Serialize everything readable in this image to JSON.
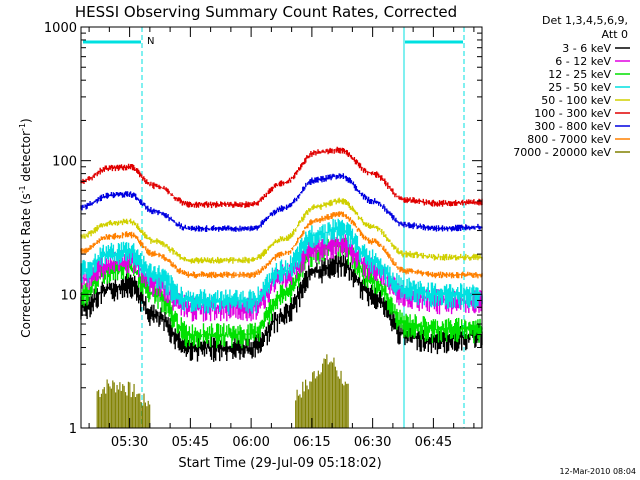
{
  "chart_data": {
    "type": "line",
    "title": "HESSI Observing Summary Count Rates, Corrected",
    "xlabel": "Start Time (29-Jul-09 05:18:02)",
    "ylabel_main": "Corrected Count Rate (s",
    "ylabel_sup1": "-1",
    "ylabel_mid": " detector",
    "ylabel_sup2": "-1",
    "ylabel_end": ")",
    "yscale": "log",
    "ylim": [
      1,
      1000
    ],
    "xlim_minutes": [
      18,
      117
    ],
    "x_ticks": [
      {
        "label": "05:30",
        "minute": 30
      },
      {
        "label": "05:45",
        "minute": 45
      },
      {
        "label": "06:00",
        "minute": 60
      },
      {
        "label": "06:15",
        "minute": 75
      },
      {
        "label": "06:30",
        "minute": 90
      },
      {
        "label": "06:45",
        "minute": 105
      }
    ],
    "y_ticks": [
      {
        "label": "1",
        "value": 1
      },
      {
        "label": "10",
        "value": 10
      },
      {
        "label": "100",
        "value": 100
      },
      {
        "label": "1000",
        "value": 1000
      }
    ],
    "legend_title_1": "Det 1,3,4,5,6,9,",
    "legend_title_2": "Att 0",
    "legend_position": "right, outside plot",
    "flag_label": "N",
    "footer_date": "12-Mar-2010 08:04",
    "series": [
      {
        "name": "3 - 6 keV",
        "color": "#000000",
        "x": [
          18,
          25,
          30,
          36,
          45,
          60,
          68,
          76,
          82,
          90,
          98,
          106,
          117
        ],
        "y": [
          8,
          11,
          12,
          7,
          4,
          4,
          7,
          15,
          17,
          10,
          5,
          4.5,
          5
        ]
      },
      {
        "name": "6 - 12 keV",
        "color": "#e000e0",
        "x": [
          18,
          25,
          30,
          36,
          45,
          60,
          68,
          76,
          82,
          90,
          98,
          106,
          117
        ],
        "y": [
          13,
          17,
          18,
          12,
          8,
          8,
          14,
          22,
          24,
          16,
          10,
          9,
          9
        ]
      },
      {
        "name": "12 - 25 keV",
        "color": "#00e000",
        "x": [
          18,
          25,
          30,
          36,
          45,
          60,
          68,
          76,
          82,
          90,
          98,
          106,
          117
        ],
        "y": [
          10,
          15,
          16,
          10,
          5,
          5,
          10,
          21,
          23,
          13,
          6,
          5.5,
          5.5
        ]
      },
      {
        "name": "25 - 50 keV",
        "color": "#00e0e0",
        "x": [
          18,
          25,
          30,
          36,
          45,
          60,
          68,
          76,
          82,
          90,
          98,
          106,
          117
        ],
        "y": [
          15,
          20,
          21,
          14,
          9,
          9,
          15,
          28,
          31,
          18,
          11,
          10,
          10
        ]
      },
      {
        "name": "50 - 100 keV",
        "color": "#d0d000",
        "x": [
          18,
          25,
          30,
          36,
          45,
          60,
          68,
          76,
          82,
          90,
          98,
          106,
          117
        ],
        "y": [
          27,
          34,
          35,
          25,
          18,
          18,
          26,
          45,
          50,
          32,
          20,
          19,
          19
        ]
      },
      {
        "name": "100 - 300 keV",
        "color": "#e00000",
        "x": [
          18,
          25,
          30,
          36,
          45,
          60,
          68,
          76,
          82,
          90,
          98,
          106,
          117
        ],
        "y": [
          70,
          88,
          90,
          65,
          47,
          47,
          68,
          115,
          120,
          80,
          51,
          48,
          49
        ]
      },
      {
        "name": "300 - 800 keV",
        "color": "#0000e0",
        "x": [
          18,
          25,
          30,
          36,
          45,
          60,
          68,
          76,
          82,
          90,
          98,
          106,
          117
        ],
        "y": [
          45,
          55,
          56,
          42,
          31,
          31,
          44,
          72,
          77,
          50,
          33,
          31,
          32
        ]
      },
      {
        "name": "800 - 7000 keV",
        "color": "#ff8000",
        "x": [
          18,
          25,
          30,
          36,
          45,
          60,
          68,
          76,
          82,
          90,
          98,
          106,
          117
        ],
        "y": [
          21,
          27,
          28,
          20,
          14,
          14,
          20,
          36,
          40,
          25,
          15,
          14,
          14
        ]
      },
      {
        "name": "7000 - 20000 keV",
        "color": "#808000",
        "x": [
          22,
          25,
          28,
          31,
          34,
          71,
          74,
          76,
          78,
          80,
          82,
          84
        ],
        "y": [
          1.8,
          2,
          2,
          1.8,
          1.5,
          1.7,
          2,
          2.5,
          3,
          3,
          2.4,
          1.8
        ]
      }
    ]
  },
  "style": {
    "cyan_lines": "#00e0e0",
    "axis_color": "#000000"
  }
}
